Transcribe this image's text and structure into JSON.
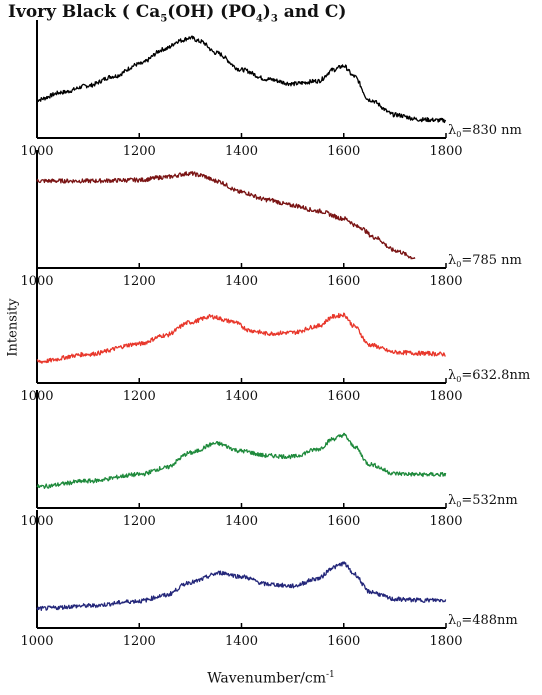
{
  "title": {
    "prefix": "Ivory Black ( Ca",
    "sub1": "5",
    "mid1": "(OH) (PO",
    "sub2": "4",
    "mid2": ")",
    "sub3": "3",
    "suffix": " and C)"
  },
  "ylabel": "Intensity",
  "xlabel": {
    "base": "Wavenumber/cm",
    "sup": "-1"
  },
  "chart_data": {
    "type": "line",
    "title": "Ivory Black ( Ca5(OH) (PO4)3 and C)",
    "xlabel": "Wavenumber/cm-1",
    "ylabel": "Intensity",
    "xlim": [
      1000,
      1800
    ],
    "xticks": [
      1000,
      1200,
      1400,
      1600,
      1800
    ],
    "grid": false,
    "series": [
      {
        "name": "λ0=830 nm",
        "label_base": "λ",
        "label_sub": "0",
        "label_rest": "=830 nm",
        "color": "#000000",
        "x": [
          1000,
          1050,
          1100,
          1150,
          1200,
          1250,
          1280,
          1300,
          1320,
          1350,
          1400,
          1450,
          1500,
          1550,
          1580,
          1600,
          1620,
          1650,
          1700,
          1750,
          1800
        ],
        "y": [
          0.3,
          0.38,
          0.45,
          0.55,
          0.68,
          0.84,
          0.93,
          0.96,
          0.92,
          0.8,
          0.62,
          0.52,
          0.47,
          0.5,
          0.62,
          0.66,
          0.55,
          0.3,
          0.14,
          0.09,
          0.08
        ]
      },
      {
        "name": "λ0=785 nm",
        "label_base": "λ",
        "label_sub": "0",
        "label_rest": "=785 nm",
        "color": "#7a1414",
        "x": [
          1000,
          1100,
          1200,
          1250,
          1300,
          1320,
          1350,
          1400,
          1450,
          1500,
          1550,
          1600,
          1630,
          1660,
          1700,
          1740
        ],
        "y": [
          0.82,
          0.82,
          0.83,
          0.86,
          0.9,
          0.88,
          0.82,
          0.7,
          0.62,
          0.56,
          0.5,
          0.42,
          0.33,
          0.22,
          0.08,
          0.0
        ]
      },
      {
        "name": "λ0=632.8nm",
        "label_base": "λ",
        "label_sub": "0",
        "label_rest": "=632.8nm",
        "color": "#e8372b",
        "x": [
          1000,
          1100,
          1200,
          1250,
          1300,
          1340,
          1380,
          1420,
          1450,
          1500,
          1550,
          1580,
          1600,
          1620,
          1650,
          1700,
          1750,
          1800
        ],
        "y": [
          0.12,
          0.2,
          0.31,
          0.4,
          0.54,
          0.6,
          0.55,
          0.45,
          0.42,
          0.43,
          0.5,
          0.6,
          0.62,
          0.5,
          0.3,
          0.22,
          0.21,
          0.2
        ]
      },
      {
        "name": "λ0=532nm",
        "label_base": "λ",
        "label_sub": "0",
        "label_rest": "=532nm",
        "color": "#1f8a3c",
        "x": [
          1000,
          1100,
          1200,
          1250,
          1300,
          1350,
          1400,
          1450,
          1500,
          1550,
          1580,
          1600,
          1620,
          1650,
          1700,
          1750,
          1800
        ],
        "y": [
          0.12,
          0.18,
          0.25,
          0.32,
          0.48,
          0.58,
          0.5,
          0.45,
          0.44,
          0.52,
          0.63,
          0.67,
          0.55,
          0.36,
          0.26,
          0.25,
          0.25
        ]
      },
      {
        "name": "λ0=488nm",
        "label_base": "λ",
        "label_sub": "0",
        "label_rest": "=488nm",
        "color": "#24277a",
        "x": [
          1000,
          1100,
          1200,
          1250,
          1300,
          1360,
          1400,
          1450,
          1500,
          1550,
          1580,
          1600,
          1620,
          1650,
          1700,
          1750,
          1800
        ],
        "y": [
          0.1,
          0.13,
          0.18,
          0.24,
          0.38,
          0.48,
          0.44,
          0.36,
          0.34,
          0.42,
          0.54,
          0.58,
          0.47,
          0.28,
          0.2,
          0.19,
          0.19
        ]
      }
    ]
  }
}
